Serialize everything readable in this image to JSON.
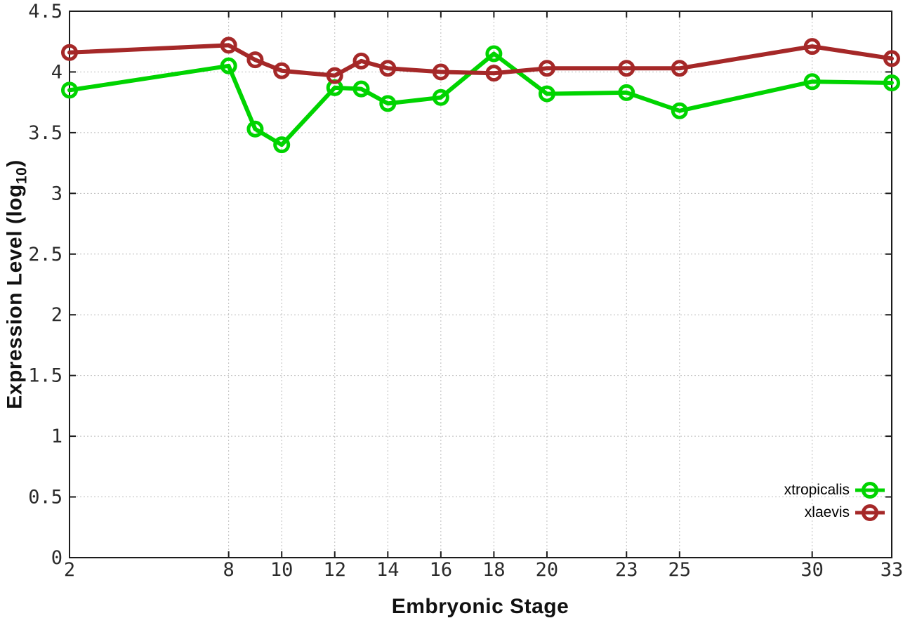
{
  "chart_data": {
    "type": "line",
    "title": "",
    "xlabel": "Embryonic Stage",
    "ylabel": "Expression Level (log10)",
    "ylabel_parts": {
      "prefix": "Expression Level (log",
      "subscript": "10",
      "suffix": ")"
    },
    "x": [
      2,
      8,
      9,
      10,
      12,
      13,
      14,
      16,
      18,
      20,
      23,
      25,
      30,
      33
    ],
    "series": [
      {
        "name": "xtropicalis",
        "color": "#00d400",
        "values": [
          3.85,
          4.05,
          3.53,
          3.4,
          3.87,
          3.86,
          3.74,
          3.79,
          4.15,
          3.82,
          3.83,
          3.68,
          3.92,
          3.91
        ]
      },
      {
        "name": "xlaevis",
        "color": "#a52828",
        "values": [
          4.16,
          4.22,
          4.1,
          4.01,
          3.97,
          4.09,
          4.03,
          4.0,
          3.99,
          4.03,
          4.03,
          4.03,
          4.21,
          4.11
        ]
      }
    ],
    "x_ticks": {
      "values": [
        2,
        8,
        10,
        12,
        14,
        16,
        18,
        20,
        23,
        25,
        30,
        33
      ],
      "labels": [
        "2",
        "8",
        "10",
        "12",
        "14",
        "16",
        "18",
        "20",
        "23",
        "25",
        "30",
        "33"
      ]
    },
    "y_ticks": {
      "values": [
        0,
        0.5,
        1,
        1.5,
        2,
        2.5,
        3,
        3.5,
        4,
        4.5
      ],
      "labels": [
        "0",
        "0.5",
        "1",
        "1.5",
        "2",
        "2.5",
        "3",
        "3.5",
        "4",
        "4.5"
      ]
    },
    "xlim": [
      2,
      33
    ],
    "ylim": [
      0,
      4.5
    ],
    "grid": true,
    "legend": {
      "position": "inside-bottom-right",
      "entries": [
        "xtropicalis",
        "xlaevis"
      ]
    },
    "colors": {
      "xtropicalis": "#00d400",
      "xlaevis": "#a52828",
      "grid": "#bcbcbc",
      "axis": "#1c1c1c",
      "background": "#ffffff"
    }
  }
}
